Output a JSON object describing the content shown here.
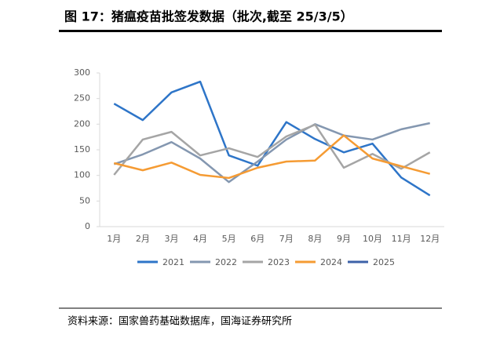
{
  "header": {
    "title": "图 17：猪瘟疫苗批签发数据（批次,截至 25/3/5）"
  },
  "chart_data": {
    "type": "line",
    "categories": [
      "1月",
      "2月",
      "3月",
      "4月",
      "5月",
      "6月",
      "7月",
      "8月",
      "9月",
      "10月",
      "11月",
      "12月"
    ],
    "series": [
      {
        "name": "2021",
        "color": "#2e75c8",
        "values": [
          240,
          208,
          262,
          283,
          139,
          119,
          204,
          171,
          145,
          162,
          96,
          61
        ]
      },
      {
        "name": "2022",
        "color": "#8497b0",
        "values": [
          122,
          141,
          165,
          133,
          87,
          127,
          170,
          200,
          178,
          170,
          190,
          202
        ]
      },
      {
        "name": "2023",
        "color": "#a5a5a5",
        "values": [
          101,
          170,
          185,
          139,
          153,
          136,
          176,
          199,
          115,
          142,
          113,
          145
        ]
      },
      {
        "name": "2024",
        "color": "#f59b33",
        "values": [
          124,
          110,
          125,
          101,
          95,
          115,
          127,
          129,
          178,
          133,
          118,
          103
        ]
      },
      {
        "name": "2025",
        "color": "#3d62a8",
        "values": [
          null,
          null,
          null,
          null,
          null,
          null,
          null,
          null,
          null,
          null,
          null,
          null
        ]
      }
    ],
    "ylim": [
      0,
      300
    ],
    "yticks": [
      0,
      50,
      100,
      150,
      200,
      250,
      300
    ]
  },
  "footer": {
    "source": "资料来源：国家兽药基础数据库，国海证券研究所"
  }
}
